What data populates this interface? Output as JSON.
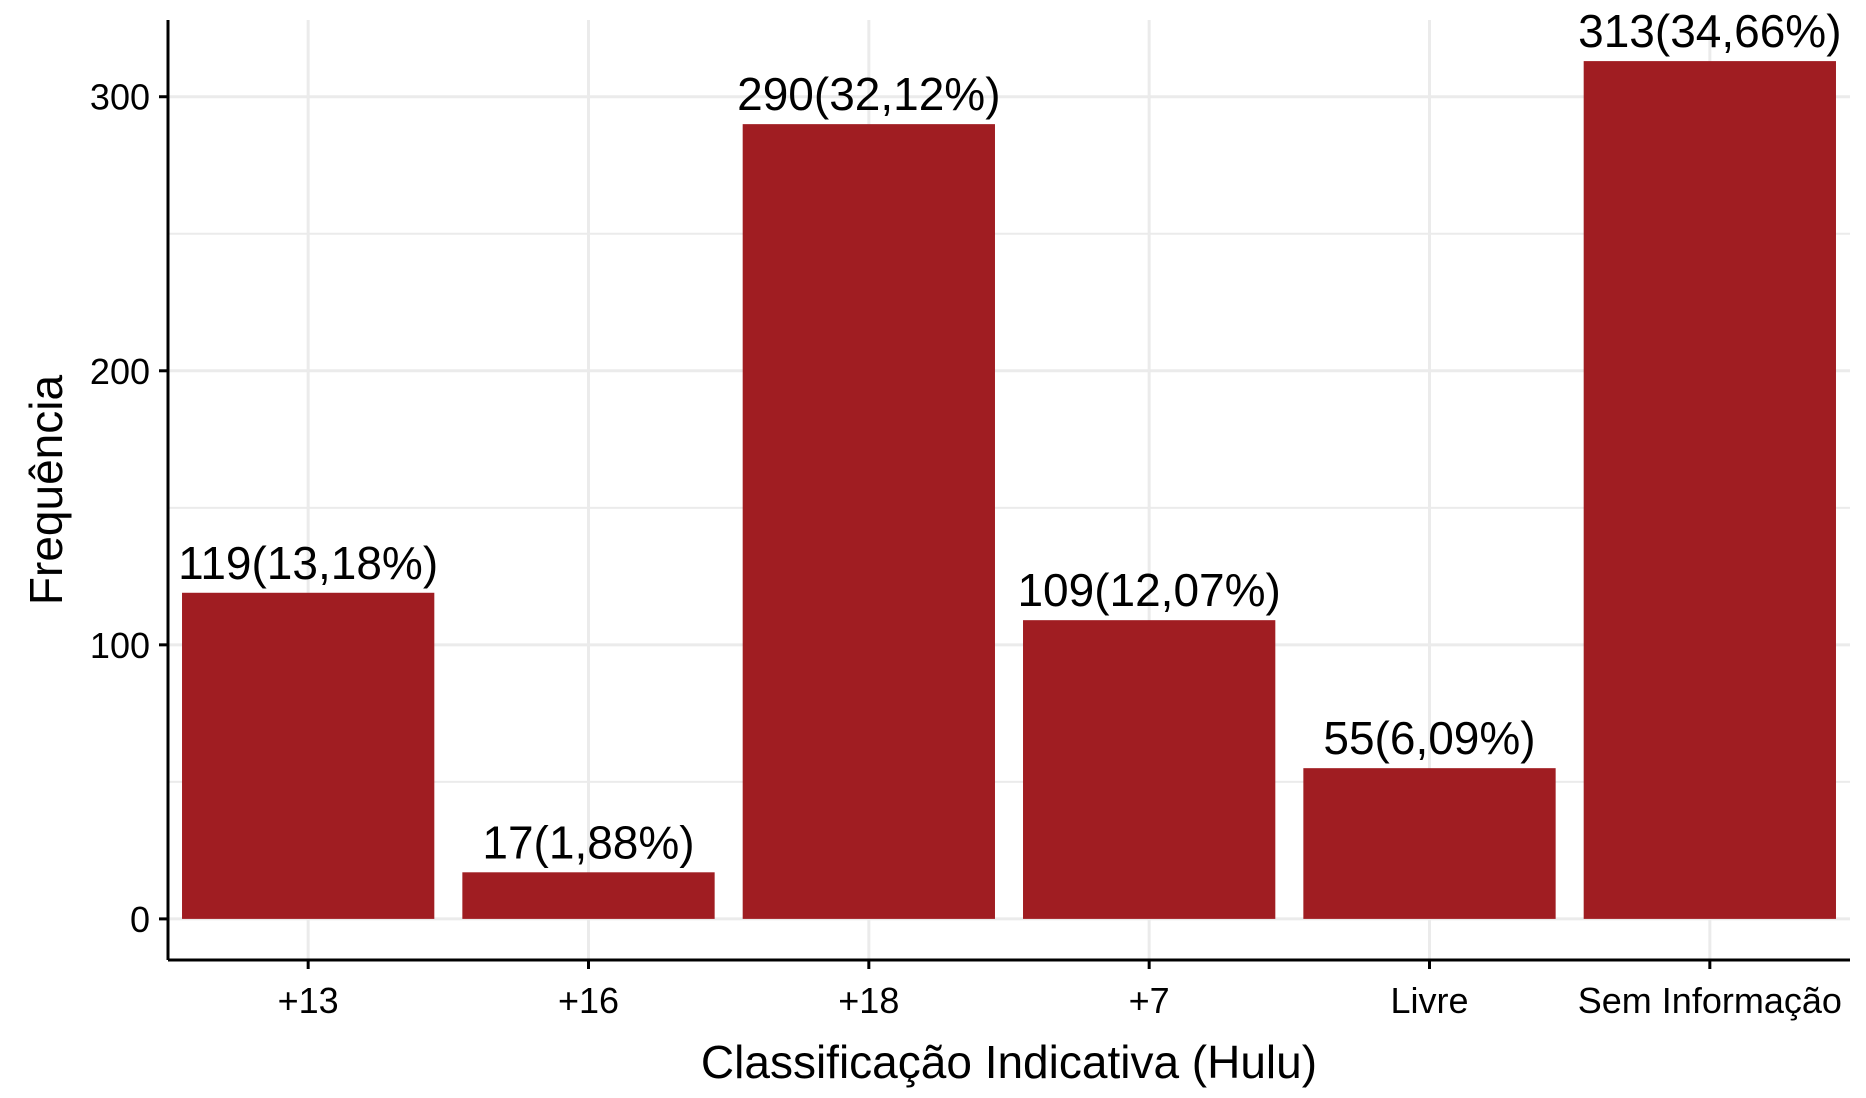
{
  "chart_data": {
    "type": "bar",
    "title": "",
    "xlabel": "Classificação Indicativa (Hulu)",
    "ylabel": "Frequência",
    "categories": [
      "+13",
      "+16",
      "+18",
      "+7",
      "Livre",
      "Sem Informação"
    ],
    "values": [
      119,
      17,
      290,
      109,
      55,
      313
    ],
    "data_labels": [
      "119(13,18%)",
      "17(1,88%)",
      "290(32,12%)",
      "109(12,07%)",
      "55(6,09%)",
      "313(34,66%)"
    ],
    "yticks": [
      0,
      100,
      200,
      300
    ],
    "ytick_labels": [
      "0",
      "100",
      "200",
      "300"
    ],
    "ylim": [
      -15,
      328
    ],
    "grid": true,
    "legend": "none",
    "colors": {
      "bar": "#a01d22",
      "grid": "#ebebeb",
      "axis": "#000000"
    }
  }
}
